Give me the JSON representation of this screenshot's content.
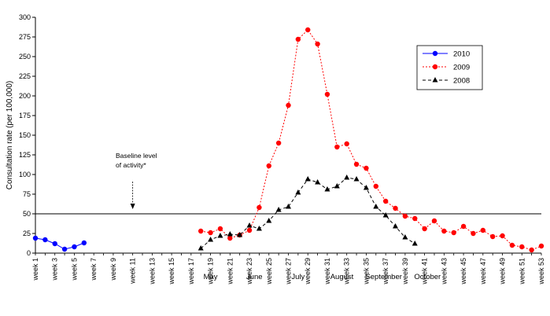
{
  "chart_data": {
    "type": "line",
    "title": "",
    "ylabel": "Consultation rate (per 100,000)",
    "xlabel": "",
    "ylim": [
      0,
      300
    ],
    "yticks": [
      0,
      25,
      50,
      75,
      100,
      125,
      150,
      175,
      200,
      225,
      250,
      275,
      300
    ],
    "xlim": [
      1,
      53
    ],
    "x_tick_labels": [
      "week 1",
      "week 3",
      "week 5",
      "week 7",
      "week 9",
      "week 11",
      "week 13",
      "week 15",
      "week 17",
      "week 19",
      "week 21",
      "week 23",
      "week 25",
      "week 27",
      "week 29",
      "week 31",
      "week 33",
      "week 35",
      "week 37",
      "week 39",
      "week 41",
      "week 43",
      "week 45",
      "week 47",
      "week 49",
      "week 51",
      "week 53"
    ],
    "x_tick_weeks": [
      1,
      3,
      5,
      7,
      9,
      11,
      13,
      15,
      17,
      19,
      21,
      23,
      25,
      27,
      29,
      31,
      33,
      35,
      37,
      39,
      41,
      43,
      45,
      47,
      49,
      51,
      53
    ],
    "months": [
      {
        "label": "May",
        "week": 19
      },
      {
        "label": "June",
        "week": 23.5
      },
      {
        "label": "July",
        "week": 28
      },
      {
        "label": "August",
        "week": 32.5
      },
      {
        "label": "September",
        "week": 36.8
      },
      {
        "label": "October",
        "week": 41.3
      }
    ],
    "baseline": {
      "value": 50,
      "label_line1": "Baseline level",
      "label_line2": "of activity*",
      "arrow_week": 11
    },
    "legend": {
      "position": "top-right"
    },
    "series": [
      {
        "name": "2010",
        "color": "#0000ff",
        "marker": "circle",
        "dash": "solid",
        "x": [
          1,
          2,
          3,
          4,
          5,
          6
        ],
        "values": [
          19,
          17,
          12,
          5,
          8,
          13
        ]
      },
      {
        "name": "2009",
        "color": "#ff0000",
        "marker": "circle",
        "dash": "dotted",
        "x": [
          18,
          19,
          20,
          21,
          22,
          23,
          24,
          25,
          26,
          27,
          28,
          29,
          30,
          31,
          32,
          33,
          34,
          35,
          36,
          37,
          38,
          39,
          40,
          41,
          42,
          43,
          44,
          45,
          46,
          47,
          48,
          49,
          50,
          51,
          52,
          53
        ],
        "values": [
          28,
          26,
          31,
          19,
          23,
          29,
          58,
          111,
          140,
          188,
          272,
          284,
          266,
          202,
          135,
          139,
          113,
          108,
          85,
          66,
          57,
          47,
          44,
          31,
          41,
          28,
          26,
          34,
          25,
          29,
          21,
          22,
          10,
          8,
          4,
          9
        ]
      },
      {
        "name": "2008",
        "color": "#000000",
        "marker": "triangle",
        "dash": "dashed",
        "x": [
          18,
          19,
          20,
          21,
          22,
          23,
          24,
          25,
          26,
          27,
          28,
          29,
          30,
          31,
          32,
          33,
          34,
          35,
          36,
          37,
          38,
          39,
          40
        ],
        "values": [
          6,
          17,
          22,
          24,
          23,
          35,
          31,
          41,
          55,
          59,
          77,
          94,
          90,
          81,
          85,
          96,
          94,
          83,
          59,
          48,
          34,
          20,
          12
        ]
      }
    ]
  }
}
